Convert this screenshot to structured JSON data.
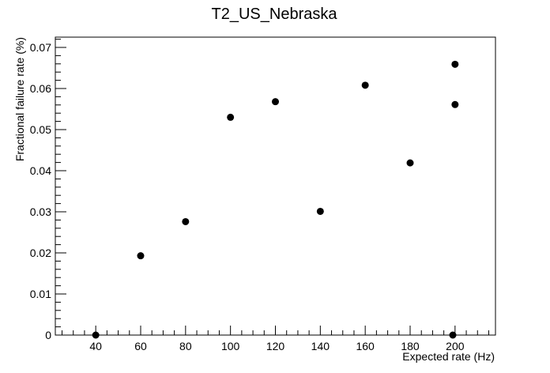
{
  "chart_data": {
    "type": "scatter",
    "title": "T2_US_Nebraska",
    "xlabel": "Expected rate (Hz)",
    "ylabel": "Fractional failure rate (%)",
    "xlim": [
      22,
      218
    ],
    "ylim": [
      0,
      0.0725
    ],
    "x_ticks": [
      40,
      60,
      80,
      100,
      120,
      140,
      160,
      180,
      200
    ],
    "y_ticks": [
      0,
      0.01,
      0.02,
      0.03,
      0.04,
      0.05,
      0.06,
      0.07
    ],
    "x_tick_labels": [
      "40",
      "60",
      "80",
      "100",
      "120",
      "140",
      "160",
      "180",
      "200"
    ],
    "y_tick_labels": [
      "0",
      "0.01",
      "0.02",
      "0.03",
      "0.04",
      "0.05",
      "0.06",
      "0.07"
    ],
    "grid": false,
    "legend": "none",
    "marker_color": "#000000",
    "points": [
      {
        "x": 40,
        "y": 0.0
      },
      {
        "x": 60,
        "y": 0.0193
      },
      {
        "x": 80,
        "y": 0.0276
      },
      {
        "x": 100,
        "y": 0.053
      },
      {
        "x": 120,
        "y": 0.0568
      },
      {
        "x": 140,
        "y": 0.0301
      },
      {
        "x": 160,
        "y": 0.0608
      },
      {
        "x": 180,
        "y": 0.0419
      },
      {
        "x": 199,
        "y": 0.0
      },
      {
        "x": 200,
        "y": 0.0561
      },
      {
        "x": 200,
        "y": 0.0659
      }
    ]
  }
}
